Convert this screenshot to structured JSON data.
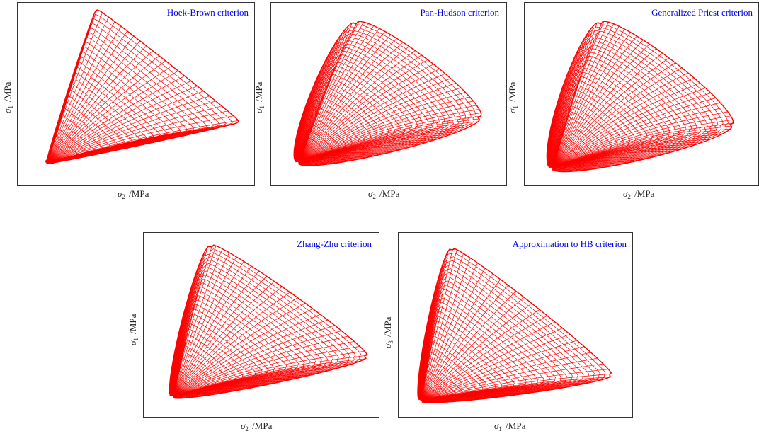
{
  "style": {
    "title_color": "#0000ee",
    "mesh_color": "#ff0000",
    "frame_color": "#333333"
  },
  "panels": [
    {
      "title": "Hoek-Brown criterion",
      "y_sym": "σ",
      "y_sub": "1",
      "y_unit": "/MPa",
      "x_sym": "σ",
      "x_sub": "2",
      "x_unit": "/MPa",
      "surface": "hoek-brown-triangular"
    },
    {
      "title": "Pan-Hudson criterion",
      "y_sym": "σ",
      "y_sub": "1",
      "y_unit": "/MPa",
      "x_sym": "σ",
      "x_sub": "2",
      "x_unit": "/MPa",
      "surface": "rounded"
    },
    {
      "title": "Generalized Priest criterion",
      "y_sym": "σ",
      "y_sub": "1",
      "y_unit": "/MPa",
      "x_sym": "σ",
      "x_sub": "2",
      "x_unit": "/MPa",
      "surface": "rounded"
    },
    {
      "title": "Zhang-Zhu criterion",
      "y_sym": "σ",
      "y_sub": "1",
      "y_unit": "/MPa",
      "x_sym": "σ",
      "x_sub": "2",
      "x_unit": "/MPa",
      "surface": "curved-triangular"
    },
    {
      "title": "Approximation to HB criterion",
      "y_sym": "σ",
      "y_sub": "3",
      "y_unit": "/MPa",
      "x_sym": "σ",
      "x_sub": "1",
      "x_unit": "/MPa",
      "surface": "curved-triangular"
    }
  ]
}
